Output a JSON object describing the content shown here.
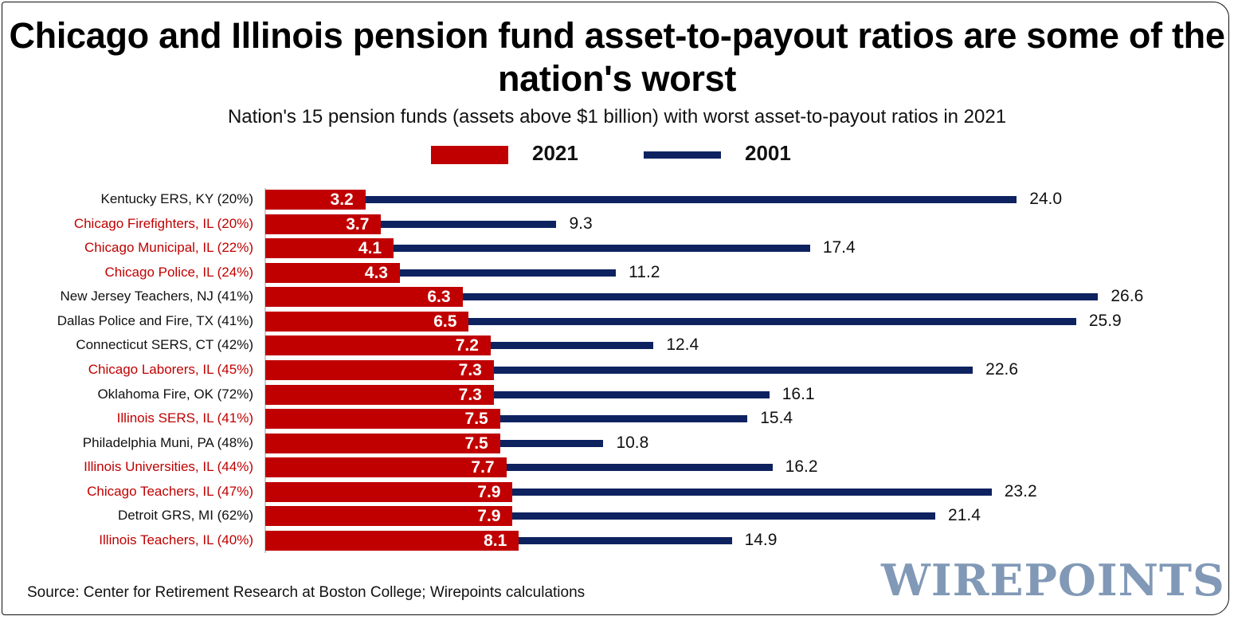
{
  "chart_data": {
    "type": "bar",
    "orientation": "horizontal",
    "title": "Chicago and Illinois pension fund asset-to-payout ratios are some of the nation's worst",
    "subtitle": "Nation's 15 pension funds (assets above $1 billion) with worst asset-to-payout ratios in 2021",
    "legend_position": "top",
    "grid": false,
    "categories": [
      "Kentucky ERS, KY (20%)",
      "Chicago Firefighters, IL (20%)",
      "Chicago Municipal, IL (22%)",
      "Chicago Police, IL (24%)",
      "New Jersey Teachers, NJ (41%)",
      "Dallas Police and Fire, TX (41%)",
      "Connecticut SERS, CT (42%)",
      "Chicago Laborers, IL (45%)",
      "Oklahoma Fire, OK (72%)",
      "Illinois SERS, IL (41%)",
      "Philadelphia Muni, PA (48%)",
      "Illinois Universities, IL (44%)",
      "Chicago Teachers, IL (47%)",
      "Detroit GRS, MI (62%)",
      "Illinois Teachers, IL (40%)"
    ],
    "highlighted_illinois": [
      false,
      true,
      true,
      true,
      false,
      false,
      false,
      true,
      false,
      true,
      false,
      true,
      true,
      false,
      true
    ],
    "series": [
      {
        "name": "2021",
        "color": "#c00000",
        "values": [
          3.2,
          3.7,
          4.1,
          4.3,
          6.3,
          6.5,
          7.2,
          7.3,
          7.3,
          7.5,
          7.5,
          7.7,
          7.9,
          7.9,
          8.1
        ]
      },
      {
        "name": "2001",
        "color": "#0e2260",
        "values": [
          24.0,
          9.3,
          17.4,
          11.2,
          26.6,
          25.9,
          12.4,
          22.6,
          16.1,
          15.4,
          10.8,
          16.2,
          23.2,
          21.4,
          14.9
        ]
      }
    ],
    "xlim": [
      0,
      27
    ]
  },
  "colors": {
    "illinois_label": "#c00000",
    "default_label": "#111111",
    "logo": "#8199b6"
  },
  "source": "Source: Center for Retirement Research at Boston College; Wirepoints calculations",
  "logo_text": "WIREPOINTS"
}
